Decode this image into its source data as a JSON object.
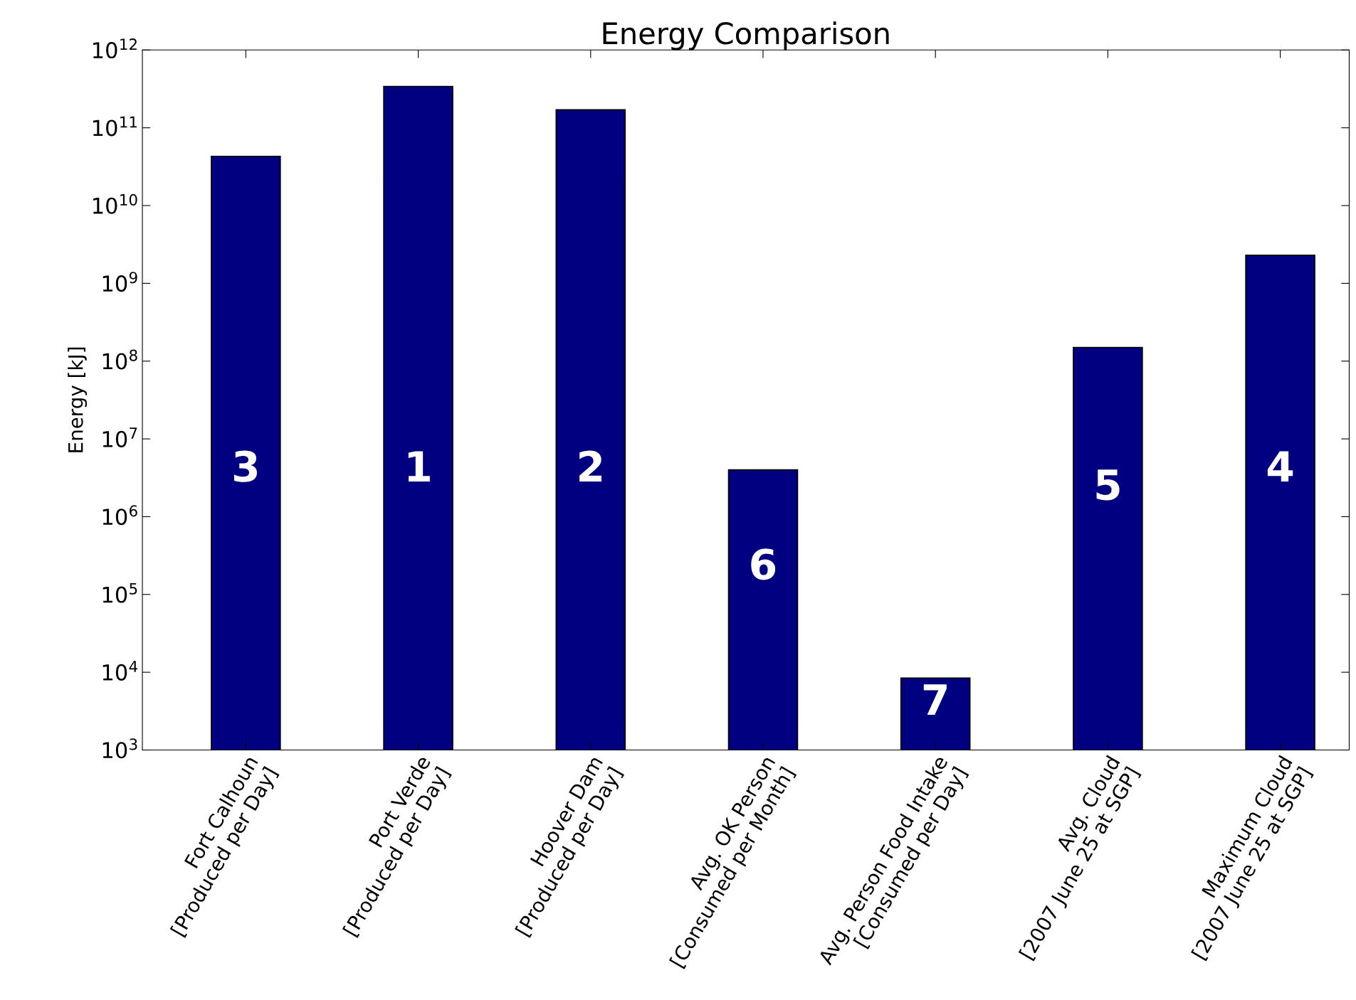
{
  "chart_data": {
    "type": "bar",
    "title": "Energy Comparison",
    "ylabel": "Energy [kJ]",
    "categories": [
      "Fort Calhoun\n[Produced per Day]",
      "Port Verde\n[Produced per Day]",
      "Hoover Dam\n[Produced per Day]",
      "Avg. OK Person\n[Consumed per Month]",
      "Avg. Person Food Intake\n[Consumed per Day]",
      "Avg. Cloud\n[2007 June 25 at SGP]",
      "Maximum Cloud\n[2007 June 25 at SGP]"
    ],
    "values": [
      43000000000,
      340000000000,
      170000000000,
      4000000,
      8400,
      150000000,
      2300000000
    ],
    "color": "#000080",
    "log": "y",
    "ylim": [
      1000,
      1000000000000
    ],
    "yticks": [
      {
        "value": 1000,
        "label": "10$^{3}$"
      },
      {
        "value": 10000,
        "label": "10$^{4}$"
      },
      {
        "value": 100000,
        "label": "10$^{5}$"
      },
      {
        "value": 1000000,
        "label": "10$^{6}$"
      },
      {
        "value": 10000000,
        "label": "10$^{7}$"
      },
      {
        "value": 100000000,
        "label": "10$^{8}$"
      },
      {
        "value": 1000000000,
        "label": "10$^{9}$"
      },
      {
        "value": 10000000000,
        "label": "10$^{10}$"
      },
      {
        "value": 100000000000,
        "label": "10$^{11}$"
      },
      {
        "value": 1000000000000,
        "label": "10$^{12}$"
      }
    ],
    "grid": false,
    "annotations": [
      "3",
      "1",
      "2",
      "6",
      "7",
      "5",
      "4"
    ]
  }
}
